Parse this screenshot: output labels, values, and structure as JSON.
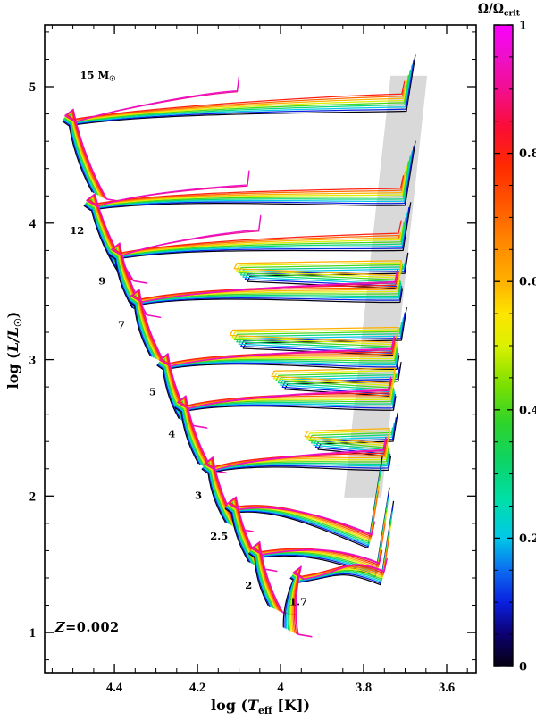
{
  "figure": {
    "background": "#ffffff"
  },
  "chart_data": {
    "type": "line",
    "title": "",
    "description": "HR diagram: stellar evolutionary tracks colored by rotation rate",
    "xlabel": {
      "pre": "log (",
      "symbol": "T",
      "sub": "eff",
      "post": " [K])"
    },
    "ylabel": {
      "pre": "log (",
      "symbol": "L/L",
      "sub": "☉",
      "post": ")"
    },
    "annotation": {
      "symbol": "Z",
      "text": "=0.002"
    },
    "x_axis": {
      "min": 3.529,
      "max": 4.568,
      "reversed": true,
      "minor_step": 0.05,
      "major_ticks": [
        {
          "v": 4.4,
          "label": "4.4"
        },
        {
          "v": 4.2,
          "label": "4.2"
        },
        {
          "v": 4.0,
          "label": "4"
        },
        {
          "v": 3.8,
          "label": "3.8"
        },
        {
          "v": 3.6,
          "label": "3.6"
        }
      ]
    },
    "y_axis": {
      "min": 0.706,
      "max": 5.452,
      "minor_step": 0.2,
      "major_ticks": [
        {
          "v": 5,
          "label": "5"
        },
        {
          "v": 4,
          "label": "4"
        },
        {
          "v": 3,
          "label": "3"
        },
        {
          "v": 2,
          "label": "2"
        },
        {
          "v": 1,
          "label": "1"
        }
      ]
    },
    "colorbar": {
      "title_symbol": "Ω/Ω",
      "title_sub": "crit",
      "min": 0,
      "max": 1,
      "minor_step": 0.05,
      "ticks": [
        {
          "v": 1,
          "label": "1"
        },
        {
          "v": 0.8,
          "label": "0.8"
        },
        {
          "v": 0.6,
          "label": "0.6"
        },
        {
          "v": 0.4,
          "label": "0.4"
        },
        {
          "v": 0.2,
          "label": "0.2"
        },
        {
          "v": 0,
          "label": "0"
        }
      ],
      "stops": [
        [
          0.0,
          "#05000f"
        ],
        [
          0.05,
          "#0d0070"
        ],
        [
          0.1,
          "#0a20e0"
        ],
        [
          0.15,
          "#0b6cf0"
        ],
        [
          0.2,
          "#00c8e8"
        ],
        [
          0.26,
          "#00dfa8"
        ],
        [
          0.32,
          "#0cd465"
        ],
        [
          0.38,
          "#2ed32a"
        ],
        [
          0.44,
          "#7de000"
        ],
        [
          0.5,
          "#dcf000"
        ],
        [
          0.55,
          "#fde500"
        ],
        [
          0.6,
          "#ffb000"
        ],
        [
          0.66,
          "#ff8800"
        ],
        [
          0.72,
          "#ff5800"
        ],
        [
          0.78,
          "#ff2a00"
        ],
        [
          0.84,
          "#fa0d35"
        ],
        [
          0.9,
          "#f20e90"
        ],
        [
          0.95,
          "#ee10c8"
        ],
        [
          1.0,
          "#fb00ff"
        ]
      ]
    },
    "omega_values": [
      0,
      0.1,
      0.2,
      0.3,
      0.4,
      0.5,
      0.6,
      0.7,
      0.8,
      0.9,
      0.95
    ],
    "instability_strip": {
      "color": "#d9d9d9",
      "polygon": [
        [
          3.735,
          5.08
        ],
        [
          3.647,
          5.08
        ],
        [
          3.757,
          1.99
        ],
        [
          3.847,
          1.99
        ]
      ]
    },
    "tracks": [
      {
        "mass": "15",
        "label": {
          "text": "15 M",
          "sub": "☉"
        },
        "label_pos": [
          4.44,
          5.06
        ],
        "zams": [
          4.454,
          4.23
        ],
        "hook": [
          4.512,
          4.78
        ],
        "cross_logL": 4.82,
        "rgb_T": 3.697,
        "tip_logL": 5.23
      },
      {
        "mass": "12",
        "label": {
          "text": "12"
        },
        "label_pos": [
          4.49,
          3.92
        ],
        "zams": [
          4.389,
          3.63
        ],
        "hook": [
          4.46,
          4.16
        ],
        "cross_logL": 4.13,
        "rgb_T": 3.7,
        "tip_logL": 4.6
      },
      {
        "mass": "9",
        "label": {
          "text": "9"
        },
        "label_pos": [
          4.43,
          3.55
        ],
        "zams": [
          4.357,
          3.38
        ],
        "hook": [
          4.4,
          3.8
        ],
        "cross_logL": 3.8,
        "rgb_T": 3.705,
        "tip_logL": 4.15
      },
      {
        "mass": "7",
        "label": {
          "text": "7"
        },
        "label_pos": [
          4.383,
          3.23
        ],
        "zams": [
          4.314,
          3.03
        ],
        "hook": [
          4.353,
          3.46
        ],
        "cross_logL": 3.42,
        "rgb_T": 3.712,
        "tip_logL": 3.78,
        "loop_T": 4.08
      },
      {
        "mass": "5",
        "label": {
          "text": "5"
        },
        "label_pos": [
          4.308,
          2.74
        ],
        "zams": [
          4.245,
          2.57
        ],
        "hook": [
          4.284,
          2.99
        ],
        "cross_logL": 2.93,
        "rgb_T": 3.72,
        "tip_logL": 3.38,
        "loop_T": 4.09
      },
      {
        "mass": "4",
        "label": {
          "text": "4"
        },
        "label_pos": [
          4.262,
          2.43
        ],
        "zams": [
          4.198,
          2.24
        ],
        "hook": [
          4.241,
          2.68
        ],
        "cross_logL": 2.63,
        "rgb_T": 3.728,
        "tip_logL": 2.98,
        "loop_T": 3.99
      },
      {
        "mass": "3",
        "label": {
          "text": "3"
        },
        "label_pos": [
          4.198,
          1.98
        ],
        "zams": [
          4.133,
          1.81
        ],
        "hook": [
          4.176,
          2.23
        ],
        "cross_logL": 2.19,
        "rgb_T": 3.74,
        "tip_logL": 2.61,
        "loop_T": 3.91
      },
      {
        "mass": "2.5",
        "label": {
          "text": "2.5"
        },
        "label_pos": [
          4.148,
          1.68
        ],
        "zams": [
          4.077,
          1.52
        ],
        "hook": [
          4.12,
          1.94
        ],
        "cross_logL": 1.91,
        "rgb_T": 3.79,
        "tip_logL": 2.29,
        "dip": [
          3.79,
          1.62
        ]
      },
      {
        "mass": "2",
        "label": {
          "text": "2"
        },
        "label_pos": [
          4.077,
          1.32
        ],
        "zams": [
          4.03,
          1.2
        ],
        "hook": [
          4.063,
          1.61
        ],
        "cross_logL": 1.6,
        "rgb_T": 3.772,
        "tip_logL": 2.06,
        "dip": [
          3.772,
          1.41
        ]
      },
      {
        "mass": "1.7",
        "label": {
          "text": "1.7"
        },
        "label_pos": [
          3.957,
          1.2
        ],
        "zams": [
          3.993,
          1.04
        ],
        "hook": [
          3.963,
          1.43
        ],
        "cross_logL": 1.45,
        "rgb_T": 3.76,
        "tip_logL": 1.96,
        "dip": [
          3.76,
          1.35
        ]
      }
    ]
  }
}
